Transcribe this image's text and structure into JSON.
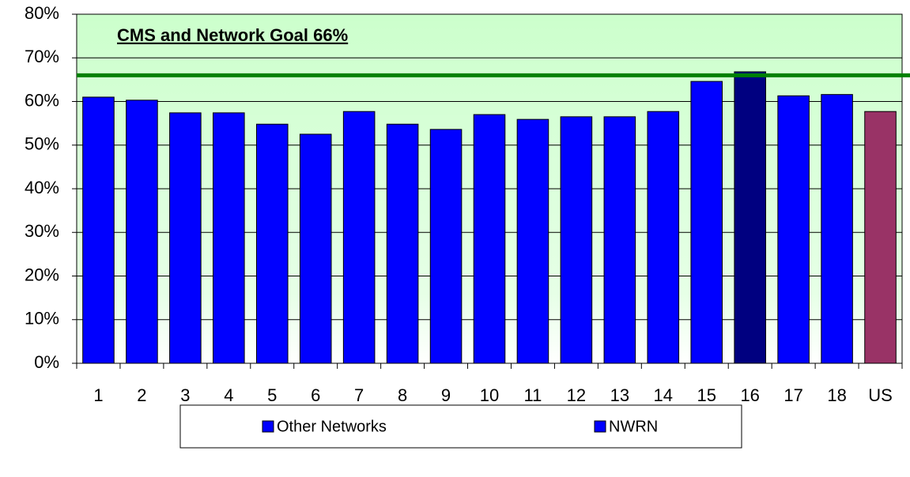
{
  "chart_data": {
    "type": "bar",
    "annotation": "CMS and Network Goal 66%",
    "goal": 66,
    "goal_color": "#008000",
    "categories": [
      "1",
      "2",
      "3",
      "4",
      "5",
      "6",
      "7",
      "8",
      "9",
      "10",
      "11",
      "12",
      "13",
      "14",
      "15",
      "16",
      "17",
      "18",
      "US"
    ],
    "values": [
      61.0,
      60.3,
      57.4,
      57.4,
      54.8,
      52.5,
      57.7,
      54.8,
      53.6,
      57.0,
      55.9,
      56.5,
      56.5,
      57.7,
      64.6,
      66.8,
      61.3,
      61.6,
      57.7
    ],
    "colors": [
      "#0000ff",
      "#0000ff",
      "#0000ff",
      "#0000ff",
      "#0000ff",
      "#0000ff",
      "#0000ff",
      "#0000ff",
      "#0000ff",
      "#0000ff",
      "#0000ff",
      "#0000ff",
      "#0000ff",
      "#0000ff",
      "#0000ff",
      "#000080",
      "#0000ff",
      "#0000ff",
      "#993366"
    ],
    "legend": [
      {
        "name": "Other Networks",
        "color": "#0000ff"
      },
      {
        "name": "NWRN",
        "color": "#0000ff"
      }
    ],
    "ylim": [
      0,
      80
    ],
    "yticks": [
      {
        "value": 0,
        "label": "0%"
      },
      {
        "value": 10,
        "label": "10%"
      },
      {
        "value": 20,
        "label": "20%"
      },
      {
        "value": 30,
        "label": "30%"
      },
      {
        "value": 40,
        "label": "40%"
      },
      {
        "value": 50,
        "label": "50%"
      },
      {
        "value": 60,
        "label": "60%"
      },
      {
        "value": 70,
        "label": "70%"
      },
      {
        "value": 80,
        "label": "80%"
      }
    ],
    "grid": true
  }
}
